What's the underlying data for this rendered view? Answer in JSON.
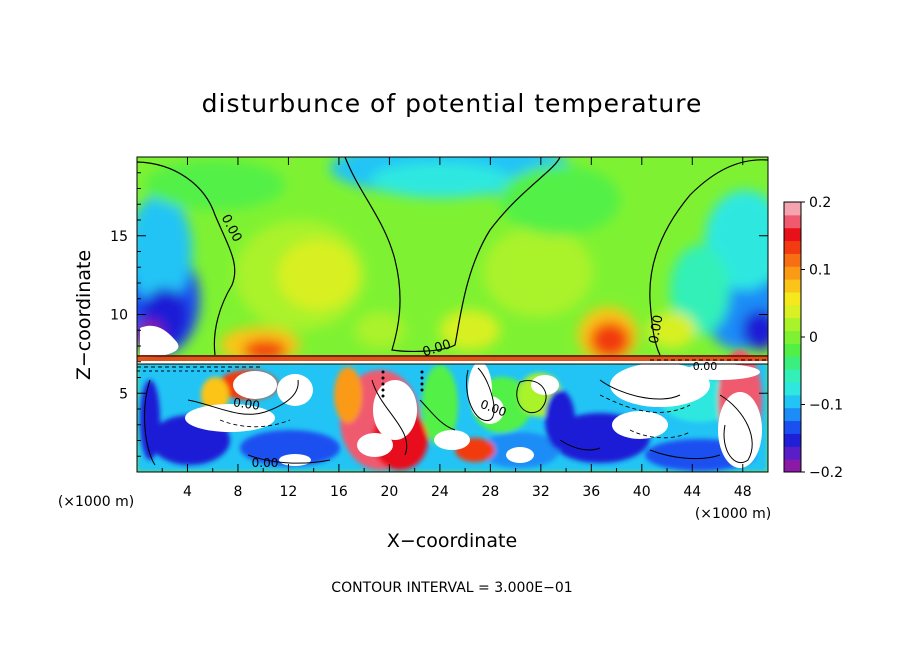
{
  "chart_data": {
    "type": "heatmap",
    "title": "disturbunce of potential temperature",
    "xlabel": "X−coordinate",
    "ylabel": "Z−coordinate",
    "x_unit": "(×1000 m)",
    "x_unit_right": "(×1000 m)",
    "footnote": "CONTOUR INTERVAL = 3.000E−01",
    "xlim": [
      0,
      50
    ],
    "ylim": [
      0,
      20
    ],
    "x_ticks": [
      4,
      8,
      12,
      16,
      20,
      24,
      28,
      32,
      36,
      40,
      44,
      48
    ],
    "y_ticks": [
      5,
      10,
      15
    ],
    "colorbar": {
      "min": -0.2,
      "max": 0.2,
      "ticks": [
        0.2,
        0.1,
        0,
        -0.1,
        -0.2
      ],
      "tick_labels": [
        "0.2",
        "0.1",
        "0",
        "−0.1",
        "−0.2"
      ],
      "colors": [
        "#8b1aa6",
        "#5a1ec8",
        "#1f1fd6",
        "#1a4ff0",
        "#1e8cf7",
        "#21c4f5",
        "#2ee8e0",
        "#33f0b8",
        "#3bef7e",
        "#52f046",
        "#7ef232",
        "#aaf22a",
        "#d8f024",
        "#f5e81d",
        "#fbc419",
        "#fb9a15",
        "#f86e12",
        "#f23b10",
        "#e8111a",
        "#f05a6e",
        "#f6a3b0"
      ]
    },
    "contour_labels": [
      "0.00",
      "0.00",
      "0.00",
      "0.00",
      "0.00",
      "0.00",
      "0.00"
    ],
    "field_summary": {
      "upper_layer": "z > 7.5: smooth field near 0, warm core (~+0.1) around x 10-16, cooler cores near x 0-6 and x 44-50",
      "interface": "sharp layer near z ~ 7.2",
      "lower_layer": "z < 7.2: turbulent field with strong positive and negative anomalies"
    }
  }
}
